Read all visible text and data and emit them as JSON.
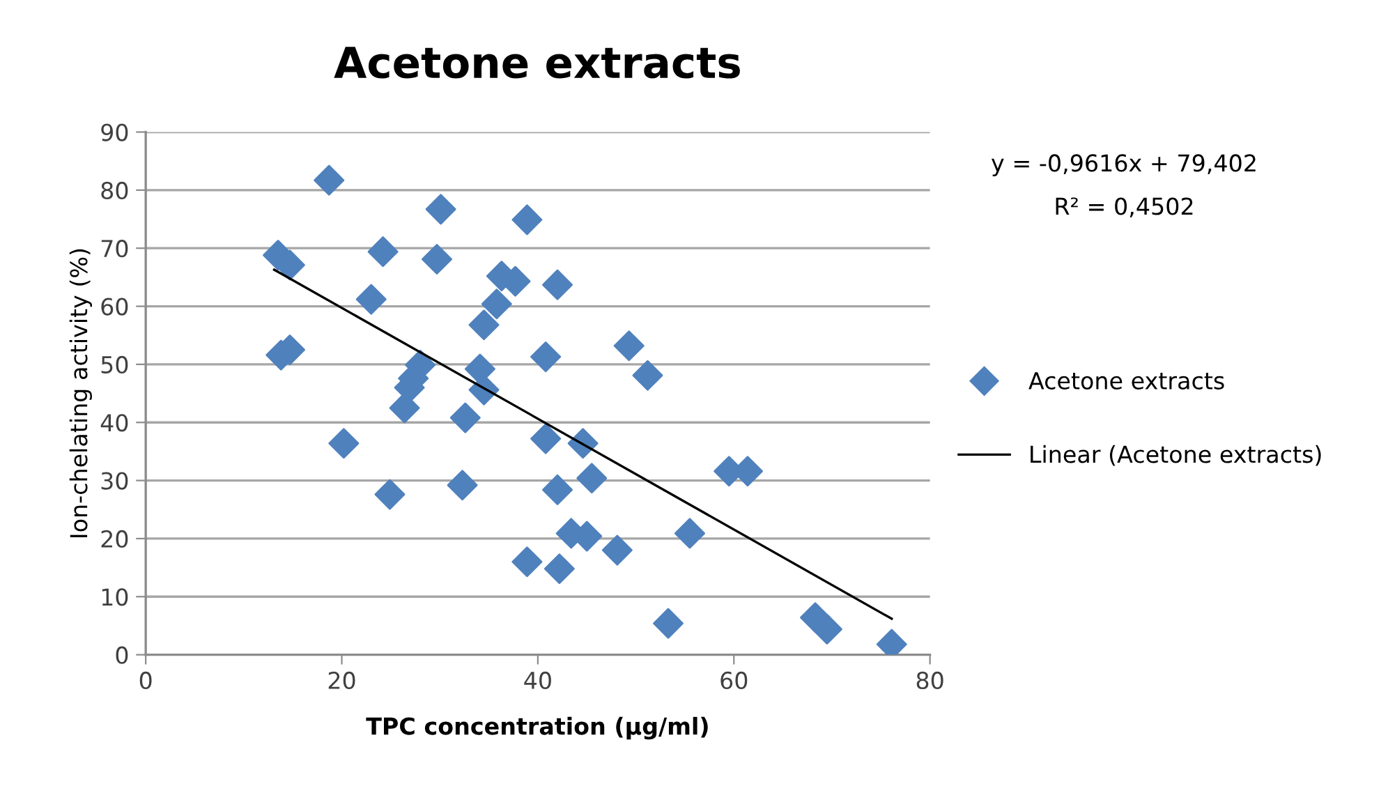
{
  "chart_data": {
    "type": "scatter",
    "title": "Acetone extracts",
    "xlabel": "TPC concentration (µg/ml)",
    "ylabel": "Ion-chelating activity (%)",
    "xlim": [
      0,
      80
    ],
    "xticks": [
      0,
      20,
      40,
      60,
      80
    ],
    "ylim": [
      0,
      90
    ],
    "yticks": [
      0,
      10,
      20,
      30,
      40,
      50,
      60,
      70,
      80,
      90
    ],
    "grid": "y",
    "legend": "right",
    "annotations": [
      "y = -0,9616x + 79,402",
      "R² = 0,4502"
    ],
    "series": [
      {
        "name": "Acetone extracts",
        "marker": "diamond",
        "color": "#4f81bd",
        "x": [
          18.7,
          13.5,
          14.7,
          30.1,
          38.9,
          24.2,
          29.7,
          23.0,
          36.3,
          37.7,
          35.8,
          34.5,
          13.8,
          14.7,
          28.0,
          27.3,
          26.9,
          26.4,
          34.1,
          34.5,
          32.6,
          20.2,
          24.9,
          32.3,
          38.9,
          42.0,
          40.8,
          49.3,
          51.2,
          40.8,
          44.6,
          42.0,
          45.5,
          43.4,
          45.0,
          48.1,
          42.2,
          55.5,
          59.5,
          61.4,
          53.3,
          68.3,
          69.5,
          76.1
        ],
        "values": [
          81.7,
          68.8,
          67.1,
          76.7,
          74.9,
          69.4,
          68.1,
          61.2,
          65.2,
          64.3,
          60.4,
          56.8,
          51.6,
          52.5,
          49.9,
          47.6,
          46.0,
          42.5,
          49.2,
          45.6,
          40.8,
          36.4,
          27.6,
          29.2,
          16.0,
          63.7,
          51.3,
          53.2,
          48.1,
          37.2,
          36.4,
          28.4,
          30.4,
          20.9,
          20.4,
          18.0,
          14.8,
          20.9,
          31.6,
          31.6,
          5.4,
          6.4,
          4.4,
          1.8
        ]
      },
      {
        "name": "Linear (Acetone extracts)",
        "type": "line",
        "marker": "none",
        "color": "#000000",
        "line_style": "solid",
        "x": [
          13.1,
          76.1
        ],
        "values": [
          66.3,
          6.2
        ]
      }
    ]
  }
}
